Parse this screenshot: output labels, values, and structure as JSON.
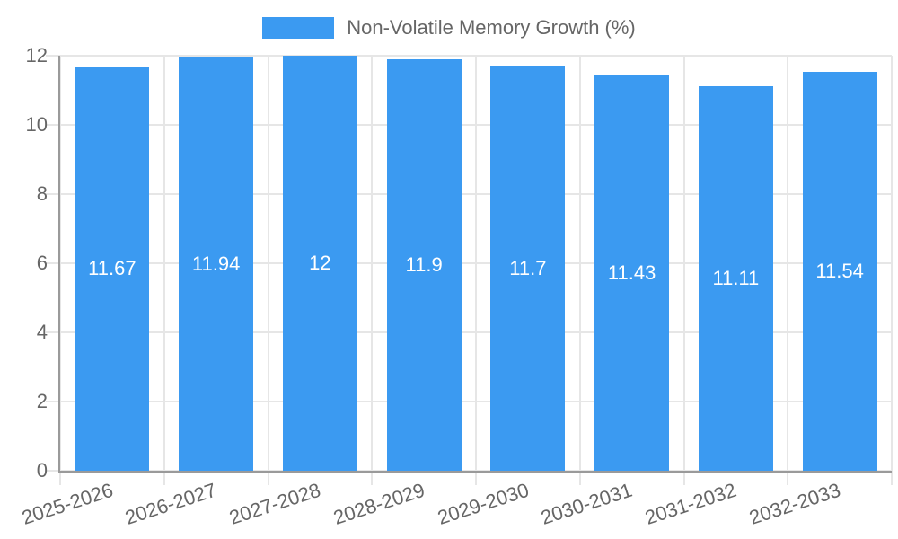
{
  "chart_data": {
    "type": "bar",
    "title": "",
    "legend_label": "Non-Volatile Memory Growth (%)",
    "legend_position": "top",
    "categories": [
      "2025-2026",
      "2026-2027",
      "2027-2028",
      "2028-2029",
      "2029-2030",
      "2030-2031",
      "2031-2032",
      "2032-2033"
    ],
    "values": [
      11.67,
      11.94,
      12,
      11.9,
      11.7,
      11.43,
      11.11,
      11.54
    ],
    "bar_labels": [
      "11.67",
      "11.94",
      "12",
      "11.9",
      "11.7",
      "11.43",
      "11.11",
      "11.54"
    ],
    "xlabel": "",
    "ylabel": "",
    "ylim": [
      0,
      12
    ],
    "yticks": [
      0,
      2,
      4,
      6,
      8,
      10,
      12
    ],
    "grid": true,
    "colors": {
      "bar": "#3b9af1",
      "bar_label": "#ffffff",
      "tick_text": "#666666",
      "grid": "#e6e6e6",
      "axis_border": "#9a9a9a",
      "background": "#ffffff"
    }
  }
}
